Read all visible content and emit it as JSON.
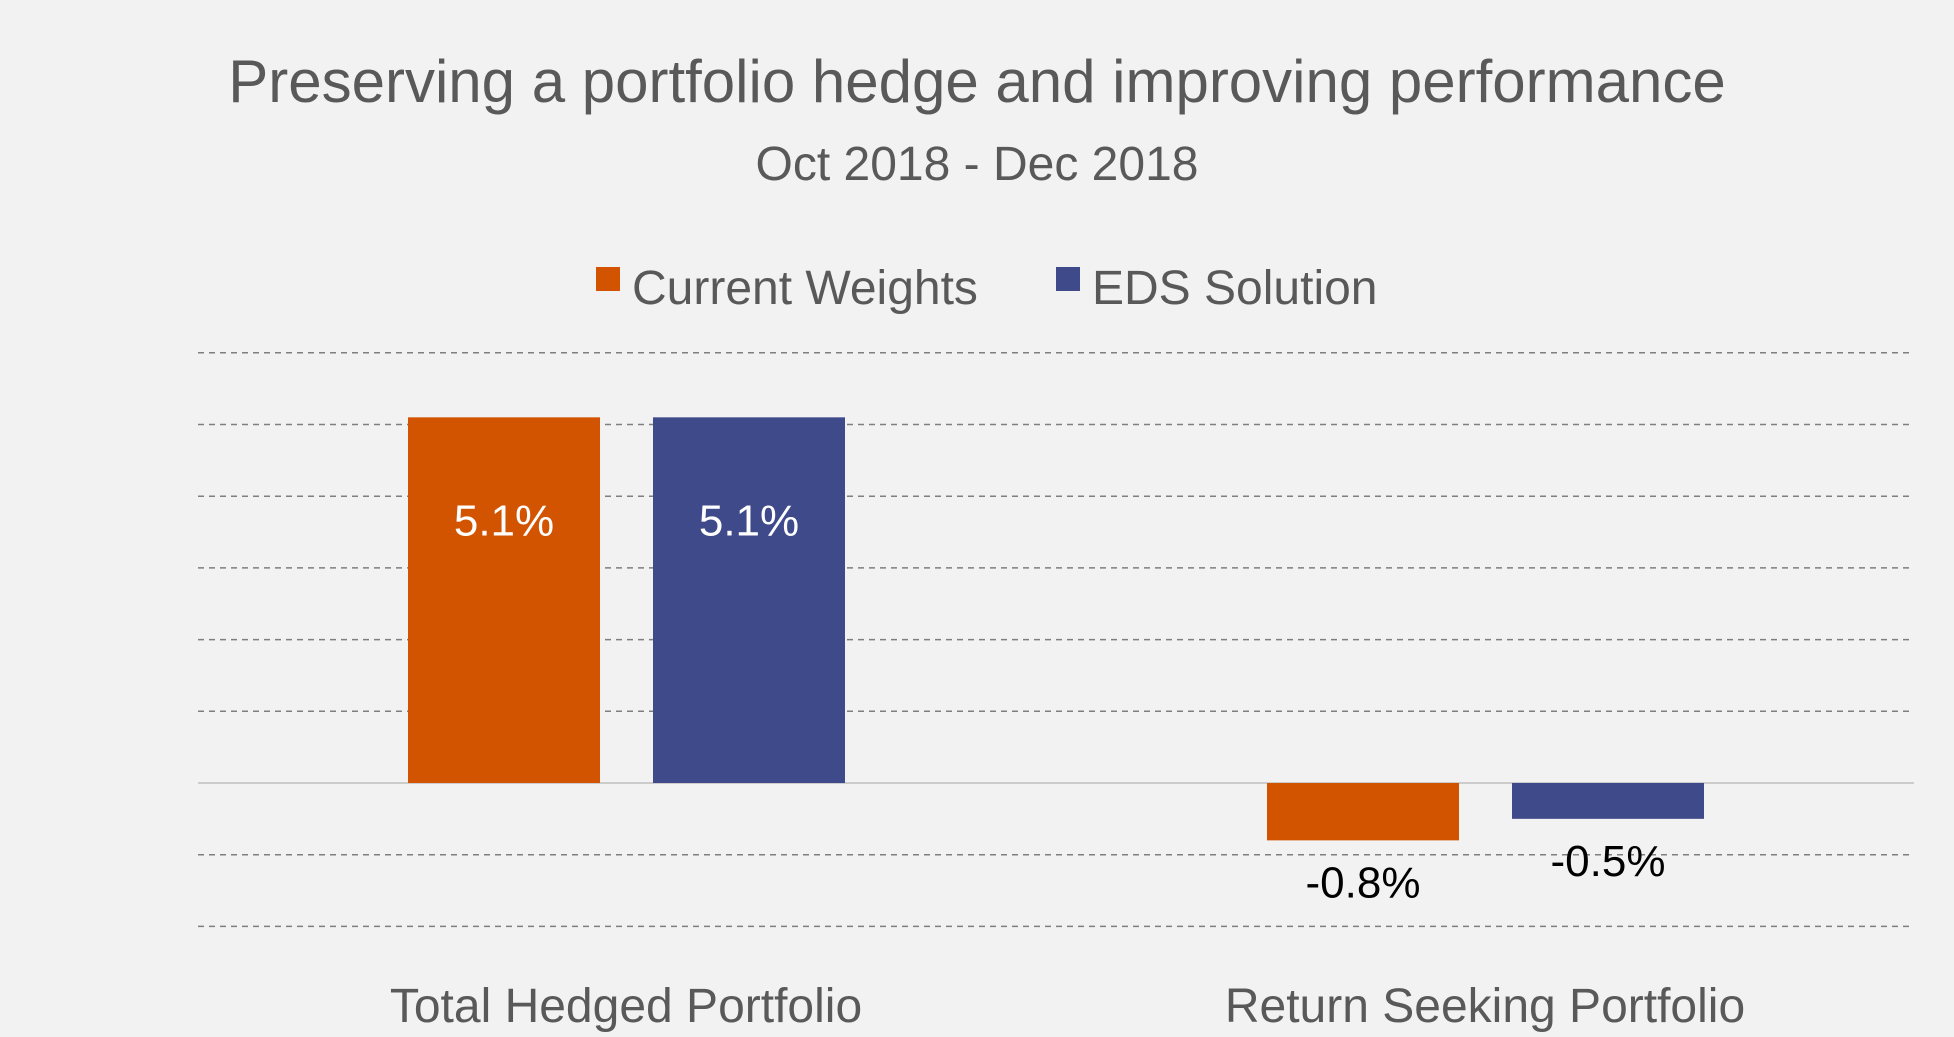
{
  "chart_data": {
    "type": "bar",
    "title": "Preserving a portfolio hedge and improving performance",
    "subtitle": "Oct 2018 - Dec 2018",
    "categories": [
      "Total Hedged Portfolio",
      "Return Seeking Portfolio"
    ],
    "series": [
      {
        "name": "Current Weights",
        "color": "#d35400",
        "values": [
          5.1,
          -0.8
        ],
        "labels": [
          "5.1%",
          "-0.8%"
        ]
      },
      {
        "name": "EDS Solution",
        "color": "#3f4a8a",
        "values": [
          5.1,
          -0.5
        ],
        "labels": [
          "5.1%",
          "-0.5%"
        ]
      }
    ],
    "ylim": [
      -2,
      6
    ],
    "ystep": 1,
    "grid": true,
    "legend_position": "top-center",
    "xlabel": "",
    "ylabel": "",
    "value_label_colors": {
      "inside": "#ffffff",
      "outside": "#000000"
    },
    "grid_color": "#7f7f7f",
    "zero_line_color": "#cccccc",
    "text_color": "#595959"
  }
}
